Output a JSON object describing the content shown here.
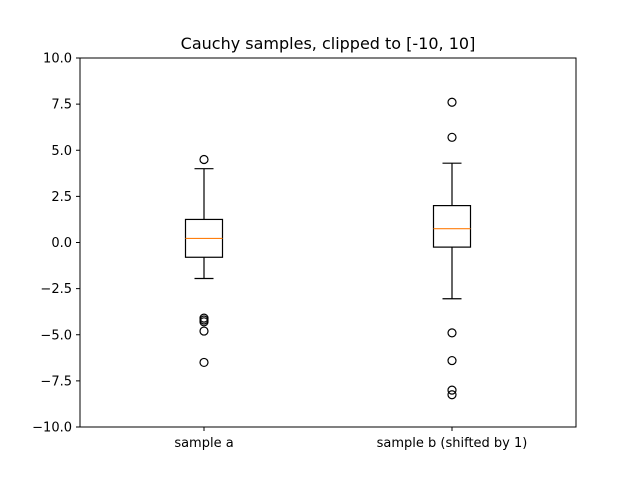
{
  "chart_data": {
    "type": "box",
    "title": "Cauchy samples, clipped to [-10, 10]",
    "xlabel": "",
    "ylabel": "",
    "ylim": [
      -10,
      10
    ],
    "yticks": [
      {
        "value": -10,
        "label": "−10.0"
      },
      {
        "value": -7.5,
        "label": "−7.5"
      },
      {
        "value": -5,
        "label": "−5.0"
      },
      {
        "value": -2.5,
        "label": "−2.5"
      },
      {
        "value": 0,
        "label": "0.0"
      },
      {
        "value": 2.5,
        "label": "2.5"
      },
      {
        "value": 5,
        "label": "5.0"
      },
      {
        "value": 7.5,
        "label": "7.5"
      },
      {
        "value": 10,
        "label": "10.0"
      }
    ],
    "grid": false,
    "colors": {
      "box": "#000000",
      "median": "#ff7f0e",
      "flier": "#000000"
    },
    "boxes": [
      {
        "label": "sample a",
        "whisker_low": -1.95,
        "q1": -0.8,
        "median": 0.22,
        "q3": 1.25,
        "whisker_high": 4.0,
        "fliers": [
          4.5,
          -4.1,
          -4.2,
          -4.3,
          -4.8,
          -6.5
        ]
      },
      {
        "label": "sample b (shifted by 1)",
        "whisker_low": -3.05,
        "q1": -0.25,
        "median": 0.75,
        "q3": 2.0,
        "whisker_high": 4.3,
        "fliers": [
          7.6,
          5.7,
          -4.9,
          -6.4,
          -8.0,
          -8.25
        ]
      }
    ]
  }
}
